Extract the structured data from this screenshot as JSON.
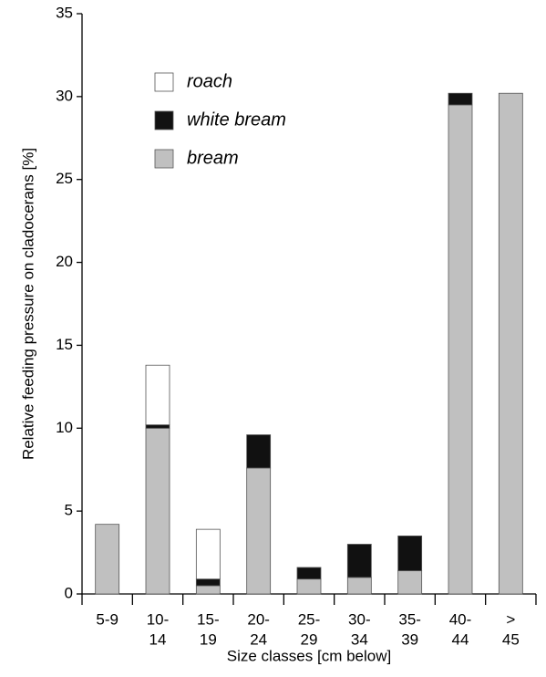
{
  "chart_data": {
    "type": "stacked-bar",
    "ylabel": "Relative feeding pressure on cladocerans [%]",
    "xlabel": "Size classes [cm below]",
    "categories": [
      [
        "5-9"
      ],
      [
        "10-",
        "14"
      ],
      [
        "15-",
        "19"
      ],
      [
        "20-",
        "24"
      ],
      [
        "25-",
        "29"
      ],
      [
        "30-",
        "34"
      ],
      [
        "35-",
        "39"
      ],
      [
        "40-",
        "44"
      ],
      [
        ">",
        "45"
      ]
    ],
    "series": [
      {
        "name": "bream",
        "color": "#c0c0c0",
        "values": [
          4.2,
          10.0,
          0.5,
          7.6,
          0.9,
          1.0,
          1.4,
          29.5,
          30.2
        ]
      },
      {
        "name": "white bream",
        "color": "#111111",
        "values": [
          0,
          0.2,
          0.4,
          2.0,
          0.7,
          2.0,
          2.1,
          0.7,
          0
        ]
      },
      {
        "name": "roach",
        "color": "#ffffff",
        "values": [
          0,
          3.6,
          3.0,
          0,
          0,
          0,
          0,
          0,
          0
        ]
      }
    ],
    "ylim": [
      0,
      35
    ],
    "yticks": [
      0,
      5,
      10,
      15,
      20,
      25,
      30,
      35
    ]
  }
}
